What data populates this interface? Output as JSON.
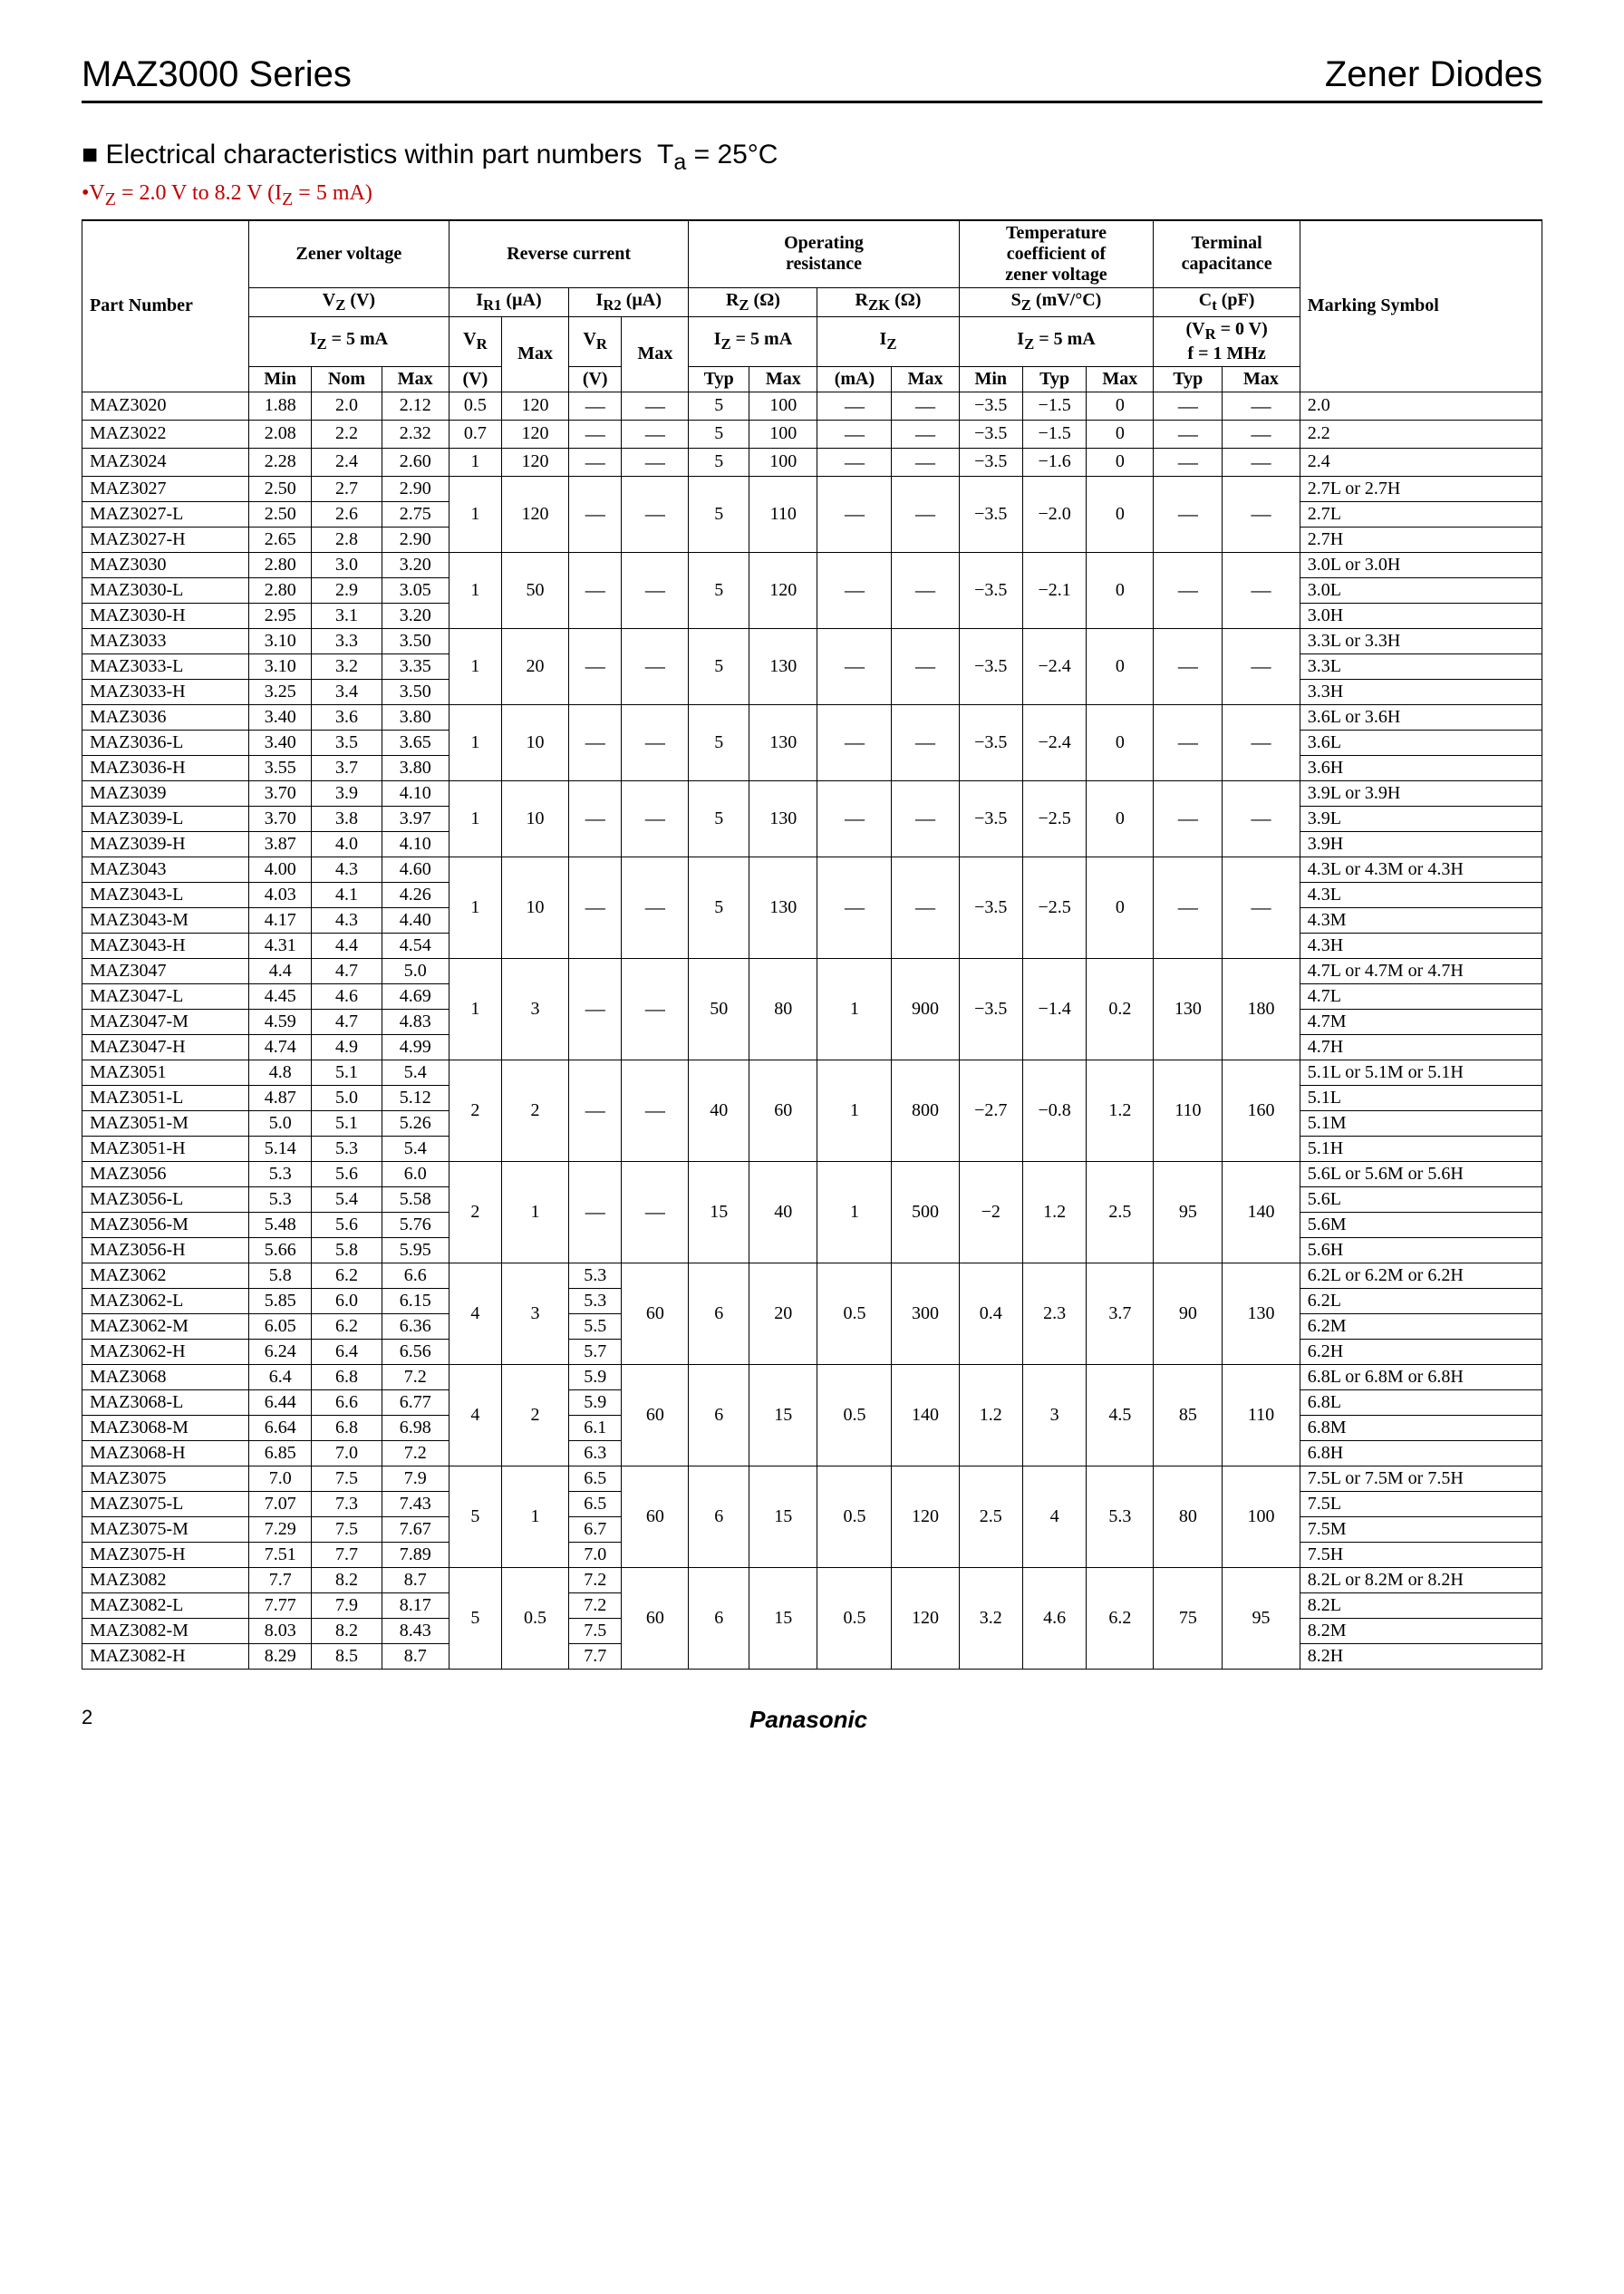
{
  "header": {
    "series": "MAZ3000 Series",
    "category": "Zener Diodes"
  },
  "section": {
    "title_html": "Electrical characteristics within part numbers&nbsp;&nbsp;T<sub>a</sub> = 25°C",
    "condition_html": "•V<sub>Z</sub> = 2.0 V to 8.2 V (I<sub>Z</sub> = 5 mA)"
  },
  "table": {
    "head": {
      "part": "Part Number",
      "zener": "Zener voltage",
      "reverse": "Reverse current",
      "opres": "Operating<br>resistance",
      "tcoef": "Temperature<br>coefficient of<br>zener voltage",
      "tcap": "Terminal<br>capacitance",
      "mark": "Marking Symbol",
      "vz": "V<sub>Z</sub> (V)",
      "iz5": "I<sub>Z</sub> = 5 mA",
      "ir1": "I<sub>R1</sub> (µA)",
      "ir2": "I<sub>R2</sub> (µA)",
      "vr": "V<sub>R</sub>",
      "rz": "R<sub>Z</sub> (Ω)",
      "rzk": "R<sub>ZK</sub> (Ω)",
      "iz": "I<sub>Z</sub>",
      "sz": "S<sub>Z</sub> (mV/°C)",
      "ct": "C<sub>t</sub> (pF)",
      "ctcond": "(V<sub>R</sub> = 0 V)<br>f = 1 MHz",
      "min": "Min",
      "nom": "Nom",
      "max": "Max",
      "v": "(V)",
      "typ": "Typ",
      "ma": "(mA)"
    },
    "groups": [
      {
        "span": 1,
        "shared": {
          "vr1": "0.5",
          "ir1max": "120",
          "vr2": "—",
          "ir2max": "—",
          "rztyp": "5",
          "rzmax": "100",
          "izma": "—",
          "rzkmax": "—",
          "szmin": "−3.5",
          "sztyp": "−1.5",
          "szmax": "0",
          "cttyp": "—",
          "ctmax": "—"
        },
        "rows": [
          {
            "part": "MAZ3020",
            "min": "1.88",
            "nom": "2.0",
            "max": "2.12",
            "mark": "2.0"
          }
        ]
      },
      {
        "span": 1,
        "shared": {
          "vr1": "0.7",
          "ir1max": "120",
          "vr2": "—",
          "ir2max": "—",
          "rztyp": "5",
          "rzmax": "100",
          "izma": "—",
          "rzkmax": "—",
          "szmin": "−3.5",
          "sztyp": "−1.5",
          "szmax": "0",
          "cttyp": "—",
          "ctmax": "—"
        },
        "rows": [
          {
            "part": "MAZ3022",
            "min": "2.08",
            "nom": "2.2",
            "max": "2.32",
            "mark": "2.2"
          }
        ]
      },
      {
        "span": 1,
        "shared": {
          "vr1": "1",
          "ir1max": "120",
          "vr2": "—",
          "ir2max": "—",
          "rztyp": "5",
          "rzmax": "100",
          "izma": "—",
          "rzkmax": "—",
          "szmin": "−3.5",
          "sztyp": "−1.6",
          "szmax": "0",
          "cttyp": "—",
          "ctmax": "—"
        },
        "rows": [
          {
            "part": "MAZ3024",
            "min": "2.28",
            "nom": "2.4",
            "max": "2.60",
            "mark": "2.4"
          }
        ]
      },
      {
        "span": 3,
        "shared": {
          "vr1": "1",
          "ir1max": "120",
          "vr2": "—",
          "ir2max": "—",
          "rztyp": "5",
          "rzmax": "110",
          "izma": "—",
          "rzkmax": "—",
          "szmin": "−3.5",
          "sztyp": "−2.0",
          "szmax": "0",
          "cttyp": "—",
          "ctmax": "—"
        },
        "rows": [
          {
            "part": "MAZ3027",
            "min": "2.50",
            "nom": "2.7",
            "max": "2.90",
            "mark": "2.7L or 2.7H"
          },
          {
            "part": "MAZ3027-L",
            "min": "2.50",
            "nom": "2.6",
            "max": "2.75",
            "mark": "2.7L"
          },
          {
            "part": "MAZ3027-H",
            "min": "2.65",
            "nom": "2.8",
            "max": "2.90",
            "mark": "2.7H"
          }
        ]
      },
      {
        "span": 3,
        "shared": {
          "vr1": "1",
          "ir1max": "50",
          "vr2": "—",
          "ir2max": "—",
          "rztyp": "5",
          "rzmax": "120",
          "izma": "—",
          "rzkmax": "—",
          "szmin": "−3.5",
          "sztyp": "−2.1",
          "szmax": "0",
          "cttyp": "—",
          "ctmax": "—"
        },
        "rows": [
          {
            "part": "MAZ3030",
            "min": "2.80",
            "nom": "3.0",
            "max": "3.20",
            "mark": "3.0L or 3.0H"
          },
          {
            "part": "MAZ3030-L",
            "min": "2.80",
            "nom": "2.9",
            "max": "3.05",
            "mark": "3.0L"
          },
          {
            "part": "MAZ3030-H",
            "min": "2.95",
            "nom": "3.1",
            "max": "3.20",
            "mark": "3.0H"
          }
        ]
      },
      {
        "span": 3,
        "shared": {
          "vr1": "1",
          "ir1max": "20",
          "vr2": "—",
          "ir2max": "—",
          "rztyp": "5",
          "rzmax": "130",
          "izma": "—",
          "rzkmax": "—",
          "szmin": "−3.5",
          "sztyp": "−2.4",
          "szmax": "0",
          "cttyp": "—",
          "ctmax": "—"
        },
        "rows": [
          {
            "part": "MAZ3033",
            "min": "3.10",
            "nom": "3.3",
            "max": "3.50",
            "mark": "3.3L or 3.3H"
          },
          {
            "part": "MAZ3033-L",
            "min": "3.10",
            "nom": "3.2",
            "max": "3.35",
            "mark": "3.3L"
          },
          {
            "part": "MAZ3033-H",
            "min": "3.25",
            "nom": "3.4",
            "max": "3.50",
            "mark": "3.3H"
          }
        ]
      },
      {
        "span": 3,
        "shared": {
          "vr1": "1",
          "ir1max": "10",
          "vr2": "—",
          "ir2max": "—",
          "rztyp": "5",
          "rzmax": "130",
          "izma": "—",
          "rzkmax": "—",
          "szmin": "−3.5",
          "sztyp": "−2.4",
          "szmax": "0",
          "cttyp": "—",
          "ctmax": "—"
        },
        "rows": [
          {
            "part": "MAZ3036",
            "min": "3.40",
            "nom": "3.6",
            "max": "3.80",
            "mark": "3.6L or 3.6H"
          },
          {
            "part": "MAZ3036-L",
            "min": "3.40",
            "nom": "3.5",
            "max": "3.65",
            "mark": "3.6L"
          },
          {
            "part": "MAZ3036-H",
            "min": "3.55",
            "nom": "3.7",
            "max": "3.80",
            "mark": "3.6H"
          }
        ]
      },
      {
        "span": 3,
        "shared": {
          "vr1": "1",
          "ir1max": "10",
          "vr2": "—",
          "ir2max": "—",
          "rztyp": "5",
          "rzmax": "130",
          "izma": "—",
          "rzkmax": "—",
          "szmin": "−3.5",
          "sztyp": "−2.5",
          "szmax": "0",
          "cttyp": "—",
          "ctmax": "—"
        },
        "rows": [
          {
            "part": "MAZ3039",
            "min": "3.70",
            "nom": "3.9",
            "max": "4.10",
            "mark": "3.9L or 3.9H"
          },
          {
            "part": "MAZ3039-L",
            "min": "3.70",
            "nom": "3.8",
            "max": "3.97",
            "mark": "3.9L"
          },
          {
            "part": "MAZ3039-H",
            "min": "3.87",
            "nom": "4.0",
            "max": "4.10",
            "mark": "3.9H"
          }
        ]
      },
      {
        "span": 4,
        "shared": {
          "vr1": "1",
          "ir1max": "10",
          "vr2": "—",
          "ir2max": "—",
          "rztyp": "5",
          "rzmax": "130",
          "izma": "—",
          "rzkmax": "—",
          "szmin": "−3.5",
          "sztyp": "−2.5",
          "szmax": "0",
          "cttyp": "—",
          "ctmax": "—"
        },
        "rows": [
          {
            "part": "MAZ3043",
            "min": "4.00",
            "nom": "4.3",
            "max": "4.60",
            "mark": "4.3L or 4.3M or 4.3H"
          },
          {
            "part": "MAZ3043-L",
            "min": "4.03",
            "nom": "4.1",
            "max": "4.26",
            "mark": "4.3L"
          },
          {
            "part": "MAZ3043-M",
            "min": "4.17",
            "nom": "4.3",
            "max": "4.40",
            "mark": "4.3M"
          },
          {
            "part": "MAZ3043-H",
            "min": "4.31",
            "nom": "4.4",
            "max": "4.54",
            "mark": "4.3H"
          }
        ]
      },
      {
        "span": 4,
        "shared": {
          "vr1": "1",
          "ir1max": "3",
          "vr2": "—",
          "ir2max": "—",
          "rztyp": "50",
          "rzmax": "80",
          "izma": "1",
          "rzkmax": "900",
          "szmin": "−3.5",
          "sztyp": "−1.4",
          "szmax": "0.2",
          "cttyp": "130",
          "ctmax": "180"
        },
        "rows": [
          {
            "part": "MAZ3047",
            "min": "4.4",
            "nom": "4.7",
            "max": "5.0",
            "mark": "4.7L or 4.7M or 4.7H"
          },
          {
            "part": "MAZ3047-L",
            "min": "4.45",
            "nom": "4.6",
            "max": "4.69",
            "mark": "4.7L"
          },
          {
            "part": "MAZ3047-M",
            "min": "4.59",
            "nom": "4.7",
            "max": "4.83",
            "mark": "4.7M"
          },
          {
            "part": "MAZ3047-H",
            "min": "4.74",
            "nom": "4.9",
            "max": "4.99",
            "mark": "4.7H"
          }
        ]
      },
      {
        "span": 4,
        "shared": {
          "vr1": "2",
          "ir1max": "2",
          "vr2": "—",
          "ir2max": "—",
          "rztyp": "40",
          "rzmax": "60",
          "izma": "1",
          "rzkmax": "800",
          "szmin": "−2.7",
          "sztyp": "−0.8",
          "szmax": "1.2",
          "cttyp": "110",
          "ctmax": "160"
        },
        "rows": [
          {
            "part": "MAZ3051",
            "min": "4.8",
            "nom": "5.1",
            "max": "5.4",
            "mark": "5.1L or 5.1M or 5.1H"
          },
          {
            "part": "MAZ3051-L",
            "min": "4.87",
            "nom": "5.0",
            "max": "5.12",
            "mark": "5.1L"
          },
          {
            "part": "MAZ3051-M",
            "min": "5.0",
            "nom": "5.1",
            "max": "5.26",
            "mark": "5.1M"
          },
          {
            "part": "MAZ3051-H",
            "min": "5.14",
            "nom": "5.3",
            "max": "5.4",
            "mark": "5.1H"
          }
        ]
      },
      {
        "span": 4,
        "shared": {
          "vr1": "2",
          "ir1max": "1",
          "vr2": "—",
          "ir2max": "—",
          "rztyp": "15",
          "rzmax": "40",
          "izma": "1",
          "rzkmax": "500",
          "szmin": "−2",
          "sztyp": "1.2",
          "szmax": "2.5",
          "cttyp": "95",
          "ctmax": "140"
        },
        "rows": [
          {
            "part": "MAZ3056",
            "min": "5.3",
            "nom": "5.6",
            "max": "6.0",
            "mark": "5.6L or 5.6M or 5.6H"
          },
          {
            "part": "MAZ3056-L",
            "min": "5.3",
            "nom": "5.4",
            "max": "5.58",
            "mark": "5.6L"
          },
          {
            "part": "MAZ3056-M",
            "min": "5.48",
            "nom": "5.6",
            "max": "5.76",
            "mark": "5.6M"
          },
          {
            "part": "MAZ3056-H",
            "min": "5.66",
            "nom": "5.8",
            "max": "5.95",
            "mark": "5.6H"
          }
        ]
      },
      {
        "span": 4,
        "shared": {
          "vr1": "4",
          "ir1max": "3",
          "vr2list": [
            "5.3",
            "5.3",
            "5.5",
            "5.7"
          ],
          "ir2max": "60",
          "rztyp": "6",
          "rzmax": "20",
          "izma": "0.5",
          "rzkmax": "300",
          "szmin": "0.4",
          "sztyp": "2.3",
          "szmax": "3.7",
          "cttyp": "90",
          "ctmax": "130"
        },
        "rows": [
          {
            "part": "MAZ3062",
            "min": "5.8",
            "nom": "6.2",
            "max": "6.6",
            "mark": "6.2L or 6.2M or 6.2H"
          },
          {
            "part": "MAZ3062-L",
            "min": "5.85",
            "nom": "6.0",
            "max": "6.15",
            "mark": "6.2L"
          },
          {
            "part": "MAZ3062-M",
            "min": "6.05",
            "nom": "6.2",
            "max": "6.36",
            "mark": "6.2M"
          },
          {
            "part": "MAZ3062-H",
            "min": "6.24",
            "nom": "6.4",
            "max": "6.56",
            "mark": "6.2H"
          }
        ]
      },
      {
        "span": 4,
        "shared": {
          "vr1": "4",
          "ir1max": "2",
          "vr2list": [
            "5.9",
            "5.9",
            "6.1",
            "6.3"
          ],
          "ir2max": "60",
          "rztyp": "6",
          "rzmax": "15",
          "izma": "0.5",
          "rzkmax": "140",
          "szmin": "1.2",
          "sztyp": "3",
          "szmax": "4.5",
          "cttyp": "85",
          "ctmax": "110"
        },
        "rows": [
          {
            "part": "MAZ3068",
            "min": "6.4",
            "nom": "6.8",
            "max": "7.2",
            "mark": "6.8L or 6.8M or 6.8H"
          },
          {
            "part": "MAZ3068-L",
            "min": "6.44",
            "nom": "6.6",
            "max": "6.77",
            "mark": "6.8L"
          },
          {
            "part": "MAZ3068-M",
            "min": "6.64",
            "nom": "6.8",
            "max": "6.98",
            "mark": "6.8M"
          },
          {
            "part": "MAZ3068-H",
            "min": "6.85",
            "nom": "7.0",
            "max": "7.2",
            "mark": "6.8H"
          }
        ]
      },
      {
        "span": 4,
        "shared": {
          "vr1": "5",
          "ir1max": "1",
          "vr2list": [
            "6.5",
            "6.5",
            "6.7",
            "7.0"
          ],
          "ir2max": "60",
          "rztyp": "6",
          "rzmax": "15",
          "izma": "0.5",
          "rzkmax": "120",
          "szmin": "2.5",
          "sztyp": "4",
          "szmax": "5.3",
          "cttyp": "80",
          "ctmax": "100"
        },
        "rows": [
          {
            "part": "MAZ3075",
            "min": "7.0",
            "nom": "7.5",
            "max": "7.9",
            "mark": "7.5L or 7.5M or 7.5H"
          },
          {
            "part": "MAZ3075-L",
            "min": "7.07",
            "nom": "7.3",
            "max": "7.43",
            "mark": "7.5L"
          },
          {
            "part": "MAZ3075-M",
            "min": "7.29",
            "nom": "7.5",
            "max": "7.67",
            "mark": "7.5M"
          },
          {
            "part": "MAZ3075-H",
            "min": "7.51",
            "nom": "7.7",
            "max": "7.89",
            "mark": "7.5H"
          }
        ]
      },
      {
        "span": 4,
        "shared": {
          "vr1": "5",
          "ir1max": "0.5",
          "vr2list": [
            "7.2",
            "7.2",
            "7.5",
            "7.7"
          ],
          "ir2max": "60",
          "rztyp": "6",
          "rzmax": "15",
          "izma": "0.5",
          "rzkmax": "120",
          "szmin": "3.2",
          "sztyp": "4.6",
          "szmax": "6.2",
          "cttyp": "75",
          "ctmax": "95"
        },
        "rows": [
          {
            "part": "MAZ3082",
            "min": "7.7",
            "nom": "8.2",
            "max": "8.7",
            "mark": "8.2L or 8.2M or 8.2H"
          },
          {
            "part": "MAZ3082-L",
            "min": "7.77",
            "nom": "7.9",
            "max": "8.17",
            "mark": "8.2L"
          },
          {
            "part": "MAZ3082-M",
            "min": "8.03",
            "nom": "8.2",
            "max": "8.43",
            "mark": "8.2M"
          },
          {
            "part": "MAZ3082-H",
            "min": "8.29",
            "nom": "8.5",
            "max": "8.7",
            "mark": "8.2H"
          }
        ]
      }
    ]
  },
  "footer": {
    "page": "2",
    "brand": "Panasonic"
  }
}
